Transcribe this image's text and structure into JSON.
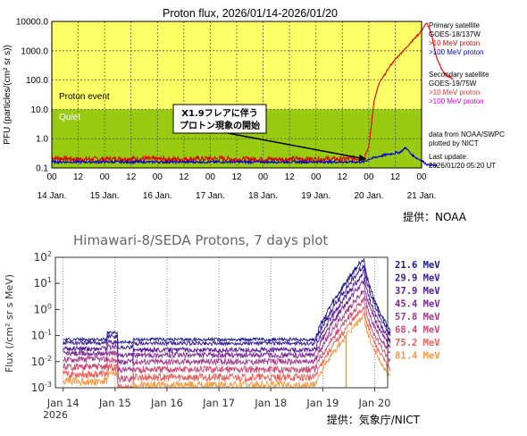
{
  "chart_data": [
    {
      "type": "line",
      "title": "Proton flux, 2026/01/14-2026/01/20",
      "ylabel": "PFU (particles/(cm² sr s))",
      "yscale": "log",
      "ylim": [
        0.1,
        10000.0
      ],
      "y_ticks": [
        "0.1",
        "1.0",
        "10.0",
        "100.0",
        "1000.0",
        "10000.0"
      ],
      "x_range_days": [
        "14 Jan.",
        "21 Jan."
      ],
      "x_ticks": [
        "00",
        "12",
        "00",
        "12",
        "00",
        "12",
        "00",
        "12",
        "00",
        "12",
        "00",
        "12",
        "00",
        "12",
        "00"
      ],
      "x_day_labels": [
        "14 Jan.",
        "15 Jan.",
        "16 Jan.",
        "17 Jan.",
        "18 Jan.",
        "19 Jan.",
        "20 Jan.",
        "21 Jan."
      ],
      "bands": {
        "event_label": "Proton event",
        "quiet_label": "Quiet",
        "event_color": "#ffff66",
        "quiet_color": "#99cc11",
        "threshold_pfu": 10
      },
      "annotation": {
        "line1": "X1.9フレアに伴う",
        "line2": "プロトン現象の開始",
        "arrow_to_x_days": 5.95,
        "arrow_to_y": 0.2
      },
      "legend": {
        "primary_heading": "Primary satellite",
        "primary_sat": "GOES-18/137W",
        "primary_10": ">10 MeV proton",
        "primary_100": ">100 MeV proton",
        "secondary_heading": "Secondary satellite",
        "secondary_sat": "GOES-19/75W",
        "secondary_10": ">10 MeV proton",
        "secondary_100": ">100 MeV proton",
        "source1": "data from NOAA/SWPC",
        "source2": "plotted by NICT",
        "updated1": "Last update:",
        "updated2": "2026/01/20 05:20 UT"
      },
      "series": [
        {
          "name": ">10 MeV proton",
          "color": "#dd0000",
          "x_days": [
            0,
            0.5,
            1.0,
            1.5,
            2.0,
            2.5,
            3.0,
            3.5,
            4.0,
            4.5,
            5.0,
            5.5,
            5.9,
            6.0,
            6.05,
            6.1,
            6.2,
            6.3,
            6.4,
            6.5,
            6.6,
            6.7,
            6.8,
            6.9,
            7.0,
            7.1,
            7.2,
            7.25,
            7.3,
            7.35,
            7.4,
            7.5,
            7.6
          ],
          "y": [
            0.22,
            0.2,
            0.2,
            0.21,
            0.2,
            0.2,
            0.21,
            0.2,
            0.2,
            0.2,
            0.2,
            0.2,
            0.22,
            0.5,
            3.0,
            20,
            80,
            150,
            300,
            500,
            800,
            1200,
            2000,
            3000,
            5000,
            9000,
            3000,
            1000,
            500,
            300,
            200,
            130,
            110
          ]
        },
        {
          "name": ">100 MeV proton",
          "color": "#0000cc",
          "x_days": [
            0,
            1.0,
            2.0,
            3.0,
            4.0,
            5.0,
            5.9,
            6.0,
            6.2,
            6.4,
            6.6,
            6.7,
            6.8,
            6.9,
            7.0,
            7.1,
            7.3
          ],
          "y": [
            0.16,
            0.16,
            0.16,
            0.16,
            0.16,
            0.16,
            0.16,
            0.2,
            0.25,
            0.3,
            0.35,
            0.5,
            0.3,
            0.22,
            0.18,
            0.13,
            0.12
          ]
        }
      ],
      "credit": "提供：NOAA"
    },
    {
      "type": "line",
      "title": "Himawari-8/SEDA Protons, 7 days plot",
      "ylabel": "Flux (/cm² sr s MeV)",
      "yscale": "log",
      "ylim": [
        0.001,
        100
      ],
      "y_ticks": [
        "10^-3",
        "10^-2",
        "10^-1",
        "10^0",
        "10^1",
        "10^2"
      ],
      "x_ticks": [
        "Jan 14",
        "Jan 15",
        "Jan 16",
        "Jan 17",
        "Jan 18",
        "Jan 19",
        "Jan 20"
      ],
      "x_year": "2026",
      "series": [
        {
          "name": "21.6 MeV",
          "color": "#1a1a8c",
          "level": 0
        },
        {
          "name": "29.9 MeV",
          "color": "#3a1a96",
          "level": 1
        },
        {
          "name": "37.9 MeV",
          "color": "#5a1a9a",
          "level": 2
        },
        {
          "name": "45.4 MeV",
          "color": "#7a2a96",
          "level": 3
        },
        {
          "name": "57.8 MeV",
          "color": "#a23a8e",
          "level": 4
        },
        {
          "name": "68.4 MeV",
          "color": "#cc4a78",
          "level": 5
        },
        {
          "name": "75.2 MeV",
          "color": "#e8605a",
          "level": 6
        },
        {
          "name": "81.4 MeV",
          "color": "#f59a3e",
          "level": 7
        }
      ],
      "quiet_levels": [
        -1.15,
        -1.3,
        -1.55,
        -1.75,
        -2.0,
        -2.3,
        -2.6,
        -2.9
      ],
      "peak_levels": [
        2.0,
        1.75,
        1.45,
        1.1,
        0.75,
        0.4,
        0.1,
        -0.2
      ],
      "credit": "提供：気象庁/NICT"
    }
  ]
}
